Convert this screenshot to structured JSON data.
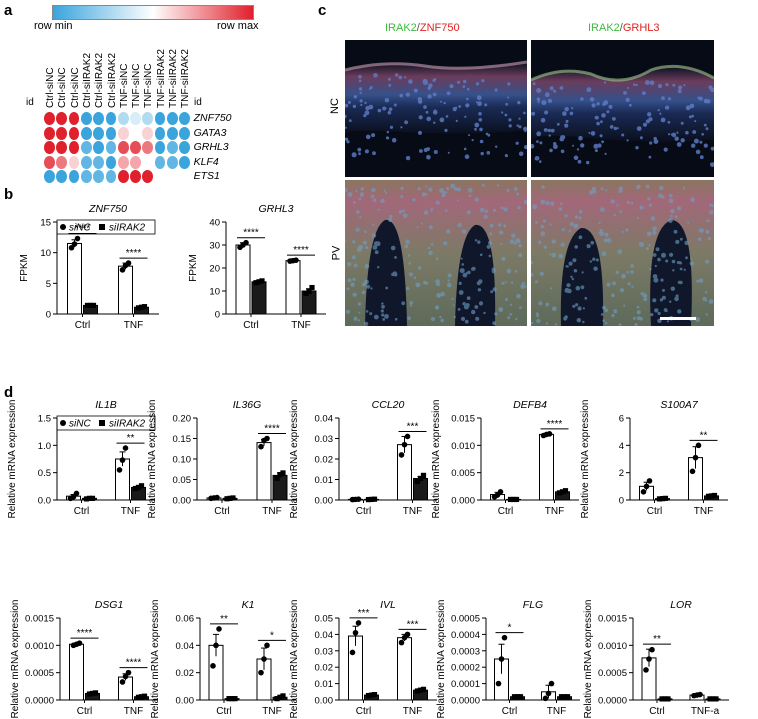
{
  "panels": {
    "a": "a",
    "b": "b",
    "c": "c",
    "d": "d"
  },
  "colors": {
    "low": "#3aa4dc",
    "mid": "#ffffff",
    "high": "#e0202c",
    "bar_siNC": "#ffffff",
    "bar_siIRAK2": "#1a1a1a",
    "green": "#3dbb3d",
    "red": "#e42222"
  },
  "heatmap": {
    "legend_min": "row min",
    "legend_max": "row max",
    "id_left": "id",
    "id_right": "id",
    "columns": [
      "Ctrl-siNC",
      "Ctrl-siNC",
      "Ctrl-siNC",
      "Ctrl-siIRAK2",
      "Ctrl-siIRAK2",
      "Ctrl-siIRAK2",
      "TNF-siNC",
      "TNF-siNC",
      "TNF-siNC",
      "TNF-siIRAK2",
      "TNF-siIRAK2",
      "TNF-siIRAK2"
    ],
    "rows": [
      "ZNF750",
      "GATA3",
      "GRHL3",
      "KLF4",
      "ETS1"
    ],
    "values": [
      [
        1,
        1,
        1,
        0,
        0,
        0,
        0.3,
        0.4,
        0.3,
        0,
        0,
        0
      ],
      [
        1,
        1,
        1,
        0,
        0,
        0,
        0.6,
        0.5,
        0.6,
        0,
        0,
        0
      ],
      [
        1,
        1,
        1,
        0.1,
        0,
        0.1,
        0.9,
        0.9,
        0.8,
        0,
        0.1,
        0
      ],
      [
        0.9,
        0.8,
        0.6,
        0.1,
        0.1,
        0,
        0.7,
        0.7,
        0.5,
        0.1,
        0.1,
        0
      ],
      [
        0,
        0,
        0,
        0.1,
        0.1,
        0.1,
        1,
        1,
        1,
        0.5,
        0.5,
        0.5
      ]
    ]
  },
  "microscopy": {
    "title_left_green": "IRAK2",
    "title_left_sep": "/",
    "title_left_red": "ZNF750",
    "title_right_green": "IRAK2",
    "title_right_sep": "/",
    "title_right_red": "GRHL3",
    "row_top": "NC",
    "row_bottom": "PV"
  },
  "legend_text": {
    "siNC": "siNC",
    "siIRAK2": "siIRAK2"
  },
  "chart_data": [
    {
      "type": "bar",
      "panel": "b",
      "title": "ZNF750",
      "ylabel": "FPKM",
      "categories": [
        "Ctrl",
        "TNF"
      ],
      "ylim": [
        0,
        15
      ],
      "yticks": [
        0,
        5,
        10,
        15
      ],
      "series": [
        {
          "name": "siNC",
          "values": [
            11.5,
            7.8
          ],
          "err": [
            0.6,
            0.5
          ],
          "points": [
            [
              10.8,
              11.4,
              12.3
            ],
            [
              7.2,
              7.9,
              8.3
            ]
          ]
        },
        {
          "name": "siIRAK2",
          "values": [
            1.4,
            1.1
          ],
          "err": [
            0,
            0.1
          ],
          "points": [
            [
              1.4,
              1.4,
              1.4
            ],
            [
              1.0,
              1.1,
              1.2
            ]
          ]
        }
      ],
      "sig": [
        "****",
        "****"
      ]
    },
    {
      "type": "bar",
      "panel": "b",
      "title": "GRHL3",
      "ylabel": "FPKM",
      "categories": [
        "Ctrl",
        "TNF"
      ],
      "ylim": [
        0,
        40
      ],
      "yticks": [
        0,
        10,
        20,
        30,
        40
      ],
      "series": [
        {
          "name": "siNC",
          "values": [
            30,
            23.2
          ],
          "err": [
            1.0,
            0.2
          ],
          "points": [
            [
              29.0,
              30.0,
              31.0
            ],
            [
              23.0,
              23.2,
              23.4
            ]
          ]
        },
        {
          "name": "siIRAK2",
          "values": [
            14,
            10
          ],
          "err": [
            0.4,
            1.0
          ],
          "points": [
            [
              13.6,
              14.0,
              14.4
            ],
            [
              9.0,
              9.8,
              11.5
            ]
          ]
        }
      ],
      "sig": [
        "****",
        "****"
      ]
    },
    {
      "type": "bar",
      "panel": "d",
      "title": "IL1B",
      "ylabel": "Relative mRNA expression",
      "categories": [
        "Ctrl",
        "TNF"
      ],
      "ylim": [
        0,
        1.5
      ],
      "yticks": [
        0,
        0.5,
        1.0,
        1.5
      ],
      "yticklabels": [
        "0.0",
        "0.5",
        "1.0",
        "1.5"
      ],
      "series": [
        {
          "name": "siNC",
          "values": [
            0.07,
            0.75
          ],
          "err": [
            0.03,
            0.13
          ],
          "points": [
            [
              0.03,
              0.06,
              0.12
            ],
            [
              0.55,
              0.73,
              0.95
            ]
          ]
        },
        {
          "name": "siIRAK2",
          "values": [
            0.03,
            0.23
          ],
          "err": [
            0.01,
            0.02
          ],
          "points": [
            [
              0.02,
              0.03,
              0.03
            ],
            [
              0.21,
              0.23,
              0.26
            ]
          ]
        }
      ],
      "sig": [
        null,
        "**"
      ]
    },
    {
      "type": "bar",
      "panel": "d",
      "title": "IL36G",
      "ylabel": "Relative mRNA expression",
      "categories": [
        "Ctrl",
        "TNF"
      ],
      "ylim": [
        0,
        0.2
      ],
      "yticks": [
        0,
        0.05,
        0.1,
        0.15,
        0.2
      ],
      "yticklabels": [
        "0.00",
        "0.05",
        "0.10",
        "0.15",
        "0.20"
      ],
      "series": [
        {
          "name": "siNC",
          "values": [
            0.005,
            0.14
          ],
          "err": [
            0.001,
            0.008
          ],
          "points": [
            [
              0.004,
              0.005,
              0.006
            ],
            [
              0.13,
              0.145,
              0.15
            ]
          ]
        },
        {
          "name": "siIRAK2",
          "values": [
            0.004,
            0.06
          ],
          "err": [
            0.001,
            0.006
          ],
          "points": [
            [
              0.003,
              0.004,
              0.005
            ],
            [
              0.053,
              0.062,
              0.066
            ]
          ]
        }
      ],
      "sig": [
        null,
        "****"
      ]
    },
    {
      "type": "bar",
      "panel": "d",
      "title": "CCL20",
      "ylabel": "Relative mRNA expression",
      "categories": [
        "Ctrl",
        "TNF"
      ],
      "ylim": [
        0,
        0.04
      ],
      "yticks": [
        0,
        0.01,
        0.02,
        0.03,
        0.04
      ],
      "yticklabels": [
        "0.00",
        "0.01",
        "0.02",
        "0.03",
        "0.04"
      ],
      "series": [
        {
          "name": "siNC",
          "values": [
            0.0003,
            0.027
          ],
          "err": [
            0.0001,
            0.004
          ],
          "points": [
            [
              0.0002,
              0.0003,
              0.0004
            ],
            [
              0.022,
              0.027,
              0.031
            ]
          ]
        },
        {
          "name": "siIRAK2",
          "values": [
            0.0003,
            0.0105
          ],
          "err": [
            0.0001,
            0.001
          ],
          "points": [
            [
              0.0002,
              0.0003,
              0.0004
            ],
            [
              0.009,
              0.0105,
              0.012
            ]
          ]
        }
      ],
      "sig": [
        null,
        "***"
      ]
    },
    {
      "type": "bar",
      "panel": "d",
      "title": "DEFB4",
      "ylabel": "Relative mRNA expression",
      "categories": [
        "Ctrl",
        "TNF"
      ],
      "ylim": [
        0,
        0.015
      ],
      "yticks": [
        0,
        0.005,
        0.01,
        0.015
      ],
      "yticklabels": [
        "0.000",
        "0.005",
        "0.010",
        "0.015"
      ],
      "series": [
        {
          "name": "siNC",
          "values": [
            0.001,
            0.012
          ],
          "err": [
            0.0004,
            0.0001
          ],
          "points": [
            [
              0.0006,
              0.0009,
              0.0015
            ],
            [
              0.0118,
              0.012,
              0.0121
            ]
          ]
        },
        {
          "name": "siIRAK2",
          "values": [
            0.0001,
            0.0015
          ],
          "err": [
            5e-05,
            0.0002
          ],
          "points": [
            [
              0.0001,
              0.0001,
              0.0001
            ],
            [
              0.0013,
              0.0015,
              0.0017
            ]
          ]
        }
      ],
      "sig": [
        null,
        "****"
      ]
    },
    {
      "type": "bar",
      "panel": "d",
      "title": "S100A7",
      "ylabel": "Relative mRNA expression",
      "categories": [
        "Ctrl",
        "TNF"
      ],
      "ylim": [
        0,
        6
      ],
      "yticks": [
        0,
        2,
        4,
        6
      ],
      "series": [
        {
          "name": "siNC",
          "values": [
            1.0,
            3.1
          ],
          "err": [
            0.3,
            0.8
          ],
          "points": [
            [
              0.6,
              1.0,
              1.4
            ],
            [
              2.1,
              3.1,
              4.0
            ]
          ]
        },
        {
          "name": "siIRAK2",
          "values": [
            0.1,
            0.3
          ],
          "err": [
            0.02,
            0.03
          ],
          "points": [
            [
              0.08,
              0.1,
              0.12
            ],
            [
              0.27,
              0.3,
              0.33
            ]
          ]
        }
      ],
      "sig": [
        null,
        "**"
      ]
    },
    {
      "type": "bar",
      "panel": "d",
      "title": "DSG1",
      "ylabel": "Relative mRNA expression",
      "categories": [
        "Ctrl",
        "TNF"
      ],
      "ylim": [
        0,
        0.0015
      ],
      "yticks": [
        0,
        0.0005,
        0.001,
        0.0015
      ],
      "yticklabels": [
        "0.0000",
        "0.0005",
        "0.0010",
        "0.0015"
      ],
      "series": [
        {
          "name": "siNC",
          "values": [
            0.00102,
            0.00042
          ],
          "err": [
            2e-05,
            6e-05
          ],
          "points": [
            [
              0.001,
              0.00102,
              0.00104
            ],
            [
              0.00033,
              0.00043,
              0.0005
            ]
          ]
        },
        {
          "name": "siIRAK2",
          "values": [
            0.00012,
            6e-05
          ],
          "err": [
            1e-05,
            1e-05
          ],
          "points": [
            [
              0.00011,
              0.00012,
              0.00013
            ],
            [
              5e-05,
              6e-05,
              7e-05
            ]
          ]
        }
      ],
      "sig": [
        "****",
        "****"
      ]
    },
    {
      "type": "bar",
      "panel": "d",
      "title": "K1",
      "ylabel": "Relative mRNA expression",
      "categories": [
        "Ctrl",
        "TNF"
      ],
      "ylim": [
        0,
        0.06
      ],
      "yticks": [
        0,
        0.02,
        0.04,
        0.06
      ],
      "yticklabels": [
        "0.00",
        "0.02",
        "0.04",
        "0.06"
      ],
      "series": [
        {
          "name": "siNC",
          "values": [
            0.04,
            0.03
          ],
          "err": [
            0.008,
            0.008
          ],
          "points": [
            [
              0.025,
              0.04,
              0.052
            ],
            [
              0.02,
              0.03,
              0.04
            ]
          ]
        },
        {
          "name": "siIRAK2",
          "values": [
            0.001,
            0.002
          ],
          "err": [
            0.0002,
            0.0008
          ],
          "points": [
            [
              0.001,
              0.001,
              0.001
            ],
            [
              0.001,
              0.002,
              0.003
            ]
          ]
        }
      ],
      "sig": [
        "**",
        "*"
      ]
    },
    {
      "type": "bar",
      "panel": "d",
      "title": "IVL",
      "ylabel": "Relative mRNA expression",
      "categories": [
        "Ctrl",
        "TNF"
      ],
      "ylim": [
        0,
        0.05
      ],
      "yticks": [
        0,
        0.01,
        0.02,
        0.03,
        0.04,
        0.05
      ],
      "yticklabels": [
        "0.00",
        "0.01",
        "0.02",
        "0.03",
        "0.04",
        "0.05"
      ],
      "series": [
        {
          "name": "siNC",
          "values": [
            0.039,
            0.038
          ],
          "err": [
            0.006,
            0.002
          ],
          "points": [
            [
              0.029,
              0.041,
              0.047
            ],
            [
              0.035,
              0.038,
              0.04
            ]
          ]
        },
        {
          "name": "siIRAK2",
          "values": [
            0.003,
            0.006
          ],
          "err": [
            0.0003,
            0.0004
          ],
          "points": [
            [
              0.0027,
              0.003,
              0.0033
            ],
            [
              0.0055,
              0.006,
              0.0065
            ]
          ]
        }
      ],
      "sig": [
        "***",
        "***"
      ]
    },
    {
      "type": "bar",
      "panel": "d",
      "title": "FLG",
      "ylabel": "Relative mRNA expression",
      "categories": [
        "Ctrl",
        "TNF"
      ],
      "ylim": [
        0,
        0.0005
      ],
      "yticks": [
        0,
        0.0001,
        0.0002,
        0.0003,
        0.0004,
        0.0005
      ],
      "yticklabels": [
        "0.0000",
        "0.0001",
        "0.0002",
        "0.0003",
        "0.0004",
        "0.0005"
      ],
      "series": [
        {
          "name": "siNC",
          "values": [
            0.00025,
            5e-05
          ],
          "err": [
            9e-05,
            4e-05
          ],
          "points": [
            [
              0.0001,
              0.00025,
              0.00038
            ],
            [
              1e-05,
              4e-05,
              0.0001
            ]
          ]
        },
        {
          "name": "siIRAK2",
          "values": [
            2e-05,
            2e-05
          ],
          "err": [
            5e-06,
            5e-06
          ],
          "points": [
            [
              2e-05,
              2e-05,
              2e-05
            ],
            [
              2e-05,
              2e-05,
              2e-05
            ]
          ]
        }
      ],
      "sig": [
        "*",
        null
      ]
    },
    {
      "type": "bar",
      "panel": "d",
      "title": "LOR",
      "ylabel": "Relative mRNA expression",
      "categories": [
        "Ctrl",
        "TNF-a"
      ],
      "ylim": [
        0,
        0.0015
      ],
      "yticks": [
        0,
        0.0005,
        0.001,
        0.0015
      ],
      "yticklabels": [
        "0.0000",
        "0.0005",
        "0.0010",
        "0.0015"
      ],
      "series": [
        {
          "name": "siNC",
          "values": [
            0.00077,
            9e-05
          ],
          "err": [
            0.00016,
            1e-05
          ],
          "points": [
            [
              0.00055,
              0.00075,
              0.00092
            ],
            [
              8e-05,
              9e-05,
              0.0001
            ]
          ]
        },
        {
          "name": "siIRAK2",
          "values": [
            2e-05,
            2e-05
          ],
          "err": [
            5e-06,
            5e-06
          ],
          "points": [
            [
              2e-05,
              2e-05,
              2e-05
            ],
            [
              2e-05,
              2e-05,
              2e-05
            ]
          ]
        }
      ],
      "sig": [
        "**",
        null
      ]
    }
  ]
}
